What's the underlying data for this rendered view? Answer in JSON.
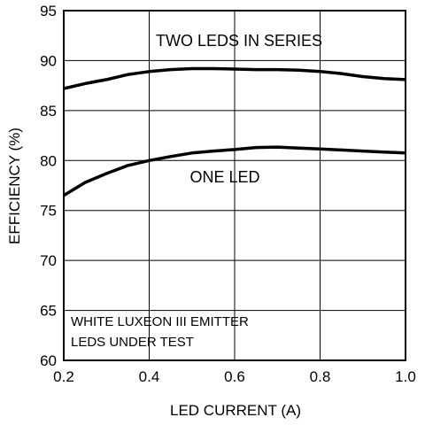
{
  "chart_data": {
    "type": "line",
    "xlabel": "LED CURRENT (A)",
    "ylabel": "EFFICIENCY (%)",
    "xlim": [
      0.2,
      1.0
    ],
    "ylim": [
      60,
      95
    ],
    "x_ticks": [
      "0.2",
      "0.4",
      "0.6",
      "0.8",
      "1.0"
    ],
    "y_ticks": [
      "60",
      "65",
      "70",
      "75",
      "80",
      "85",
      "90",
      "95"
    ],
    "grid": true,
    "series": [
      {
        "name": "TWO LEDS IN SERIES",
        "x": [
          0.2,
          0.25,
          0.3,
          0.35,
          0.4,
          0.45,
          0.5,
          0.55,
          0.6,
          0.65,
          0.7,
          0.75,
          0.8,
          0.85,
          0.9,
          0.95,
          1.0
        ],
        "y": [
          87.2,
          87.7,
          88.1,
          88.6,
          88.9,
          89.1,
          89.2,
          89.2,
          89.15,
          89.1,
          89.1,
          89.05,
          88.9,
          88.7,
          88.4,
          88.2,
          88.1
        ]
      },
      {
        "name": "ONE LED",
        "x": [
          0.2,
          0.25,
          0.3,
          0.35,
          0.4,
          0.45,
          0.5,
          0.55,
          0.6,
          0.65,
          0.7,
          0.75,
          0.8,
          0.85,
          0.9,
          0.95,
          1.0
        ],
        "y": [
          76.5,
          77.8,
          78.7,
          79.5,
          80.0,
          80.4,
          80.75,
          80.95,
          81.1,
          81.3,
          81.35,
          81.25,
          81.15,
          81.05,
          80.95,
          80.85,
          80.75
        ]
      }
    ],
    "annotations": [
      "TWO LEDS IN SERIES",
      "ONE LED",
      "WHITE LUXEON III EMITTER",
      "LEDS UNDER TEST"
    ]
  }
}
